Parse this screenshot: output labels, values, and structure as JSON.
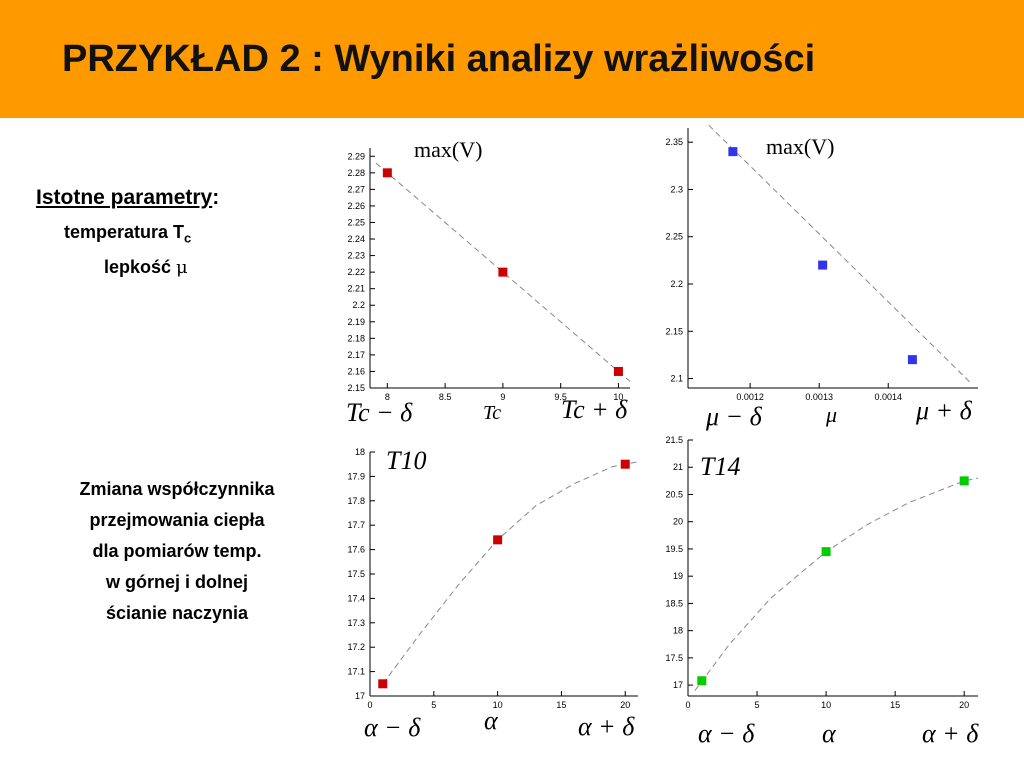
{
  "title": "PRZYKŁAD 2 : Wyniki analizy wrażliwości",
  "params": {
    "heading": "Istotne parametry",
    "colon": ":",
    "temp_text": "temperatura T",
    "temp_sub": "c",
    "visc_text": "lepkość ",
    "visc_symbol": "μ"
  },
  "description": [
    "Zmiana współczynnika",
    "przejmowania ciepła",
    "dla pomiarów temp.",
    "w górnej i dolnej",
    "ścianie naczynia"
  ],
  "formulas": {
    "max_v": "max(V)",
    "tc_minus": "Tc − δ",
    "tc": "Tc",
    "tc_plus": "Tc + δ",
    "mu_minus": "μ − δ",
    "mu": "μ",
    "mu_plus": "μ + δ",
    "t10": "T10",
    "t14": "T14",
    "alpha_minus": "α − δ",
    "alpha": "α",
    "alpha_plus": "α + δ"
  },
  "colors": {
    "header": "#ff9900",
    "red": "#cc0000",
    "blue": "#3333ee",
    "green": "#00cc00"
  },
  "chart_data": [
    {
      "type": "scatter",
      "xlim": [
        7.85,
        10.1
      ],
      "ylim": [
        2.15,
        2.295
      ],
      "xticks": [
        8,
        8.5,
        9,
        9.5,
        10
      ],
      "yticks": [
        2.15,
        2.16,
        2.17,
        2.18,
        2.19,
        2.2,
        2.21,
        2.22,
        2.23,
        2.24,
        2.25,
        2.26,
        2.27,
        2.28,
        2.29
      ],
      "points": [
        [
          8,
          2.28
        ],
        [
          9,
          2.22
        ],
        [
          10,
          2.16
        ]
      ],
      "trend": [
        [
          7.9,
          2.286
        ],
        [
          10.1,
          2.154
        ]
      ],
      "marker_color": "#cc0000"
    },
    {
      "type": "scatter",
      "xlim": [
        0.00111,
        0.00153
      ],
      "ylim": [
        2.09,
        2.365
      ],
      "xticks": [
        0.0012,
        0.0013,
        0.0014
      ],
      "xtick_labels": [
        "0.0012",
        "0.0013",
        "0.0014"
      ],
      "yticks": [
        2.1,
        2.15,
        2.2,
        2.25,
        2.3,
        2.35
      ],
      "points": [
        [
          0.001175,
          2.34
        ],
        [
          0.001305,
          2.22
        ],
        [
          0.001435,
          2.12
        ]
      ],
      "trend": [
        [
          0.00114,
          2.368
        ],
        [
          0.00152,
          2.095
        ]
      ],
      "marker_color": "#3333ee"
    },
    {
      "type": "scatter",
      "xlim": [
        0,
        21
      ],
      "ylim": [
        17.0,
        18.0
      ],
      "xticks": [
        0,
        5,
        10,
        15,
        20
      ],
      "yticks": [
        17,
        17.1,
        17.2,
        17.3,
        17.4,
        17.5,
        17.6,
        17.7,
        17.8,
        17.9,
        18
      ],
      "points": [
        [
          1,
          17.05
        ],
        [
          10,
          17.64
        ],
        [
          20,
          17.95
        ]
      ],
      "trend": [
        [
          1,
          17.05
        ],
        [
          4,
          17.26
        ],
        [
          7,
          17.46
        ],
        [
          10,
          17.64
        ],
        [
          13,
          17.78
        ],
        [
          16,
          17.87
        ],
        [
          19,
          17.94
        ],
        [
          21,
          17.96
        ]
      ],
      "marker_color": "#cc0000"
    },
    {
      "type": "scatter",
      "xlim": [
        0,
        21
      ],
      "ylim": [
        16.8,
        21.5
      ],
      "xticks": [
        0,
        5,
        10,
        15,
        20
      ],
      "yticks": [
        17,
        17.5,
        18,
        18.5,
        19,
        19.5,
        20,
        20.5,
        21,
        21.5
      ],
      "points": [
        [
          1,
          17.08
        ],
        [
          10,
          19.45
        ],
        [
          20,
          20.75
        ]
      ],
      "trend": [
        [
          0.5,
          16.9
        ],
        [
          3,
          17.75
        ],
        [
          6,
          18.6
        ],
        [
          10,
          19.45
        ],
        [
          13,
          19.95
        ],
        [
          16,
          20.35
        ],
        [
          20,
          20.75
        ],
        [
          21,
          20.8
        ]
      ],
      "marker_color": "#00cc00"
    }
  ]
}
